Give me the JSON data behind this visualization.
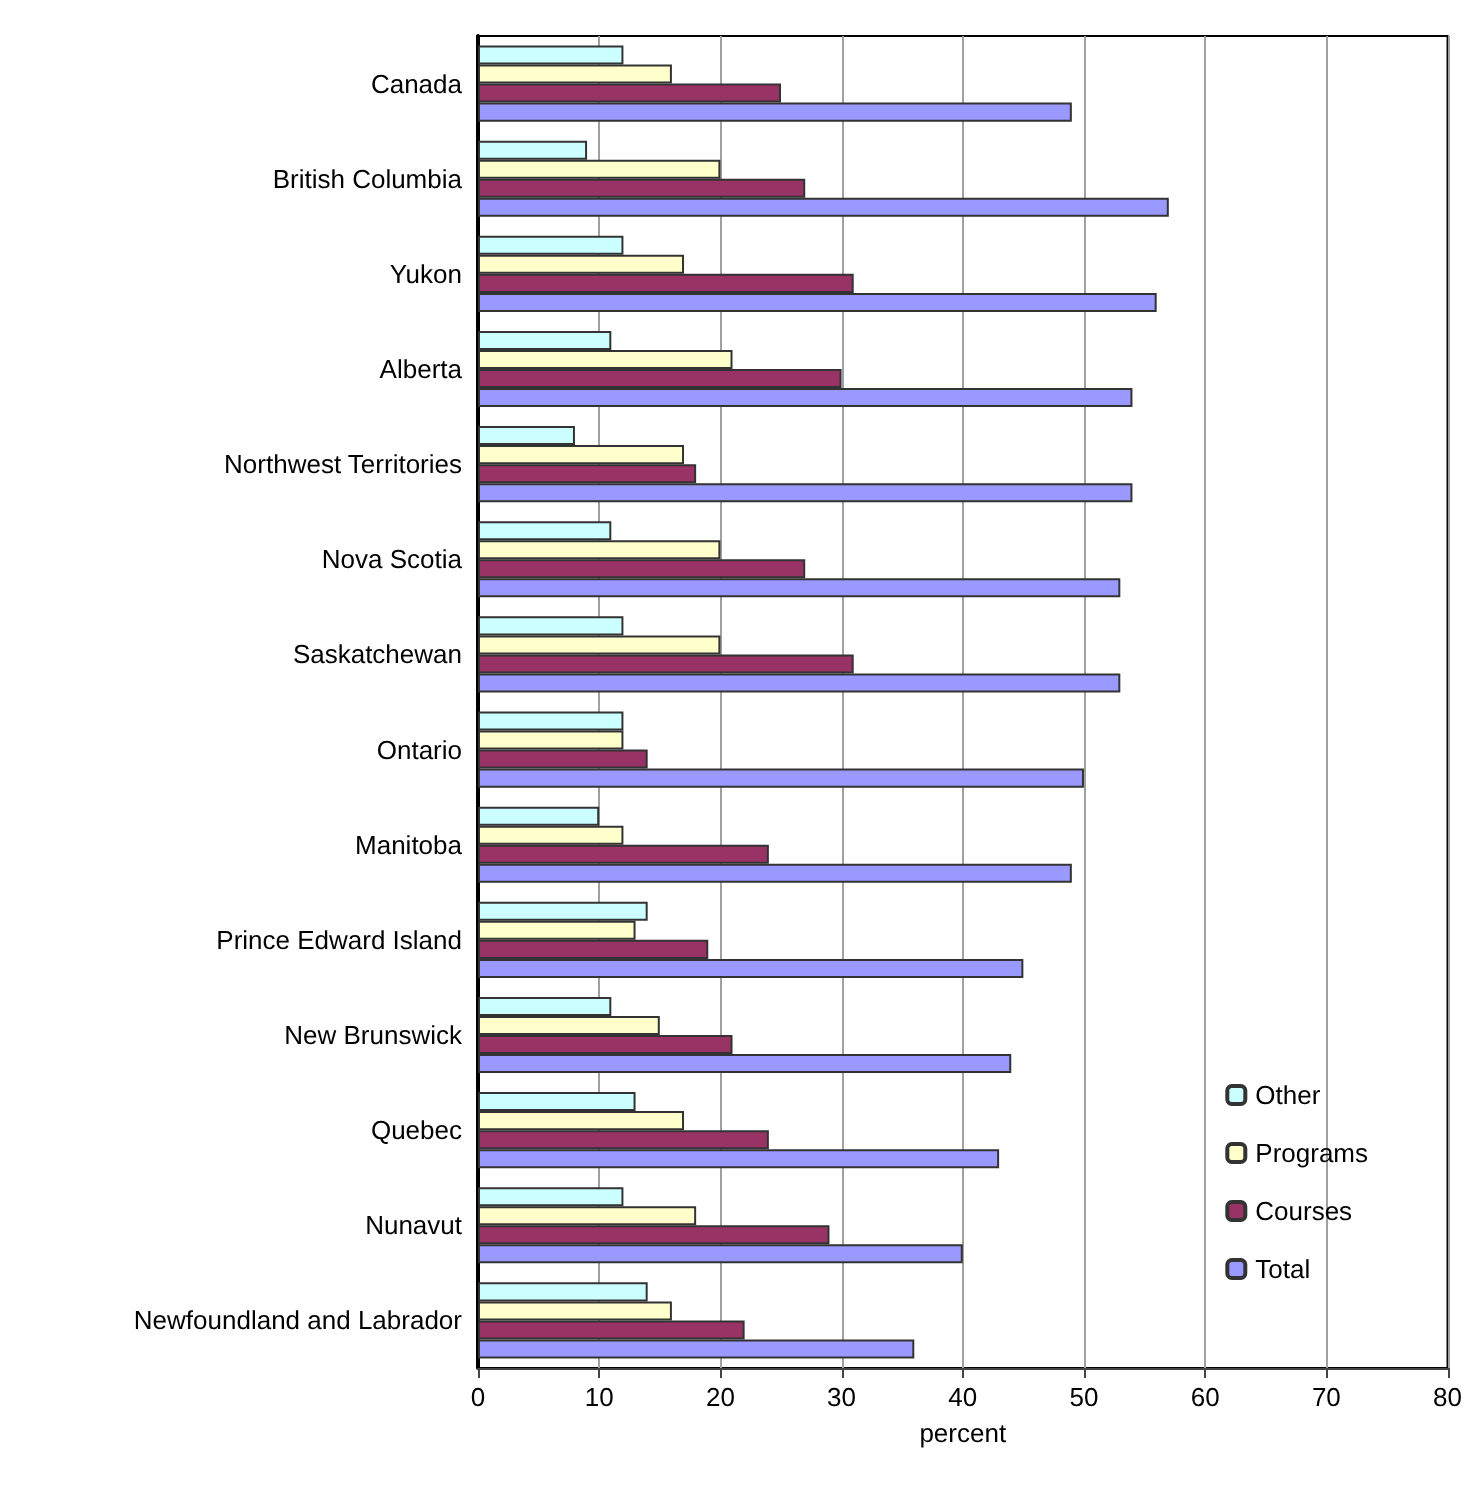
{
  "chart_data": {
    "type": "bar",
    "orientation": "horizontal",
    "xlabel": "percent",
    "categories": [
      "Canada",
      "British Columbia",
      "Yukon",
      "Alberta",
      "Northwest Territories",
      "Nova Scotia",
      "Saskatchewan",
      "Ontario",
      "Manitoba",
      "Prince Edward Island",
      "New Brunswick",
      "Quebec",
      "Nunavut",
      "Newfoundland and Labrador"
    ],
    "series": [
      {
        "name": "Other",
        "color": "#ccffff",
        "values": [
          12,
          9,
          12,
          11,
          8,
          11,
          12,
          12,
          10,
          14,
          11,
          13,
          12,
          14
        ]
      },
      {
        "name": "Programs",
        "color": "#ffffcc",
        "values": [
          16,
          20,
          17,
          21,
          17,
          20,
          20,
          12,
          12,
          13,
          15,
          17,
          18,
          16
        ]
      },
      {
        "name": "Courses",
        "color": "#993366",
        "values": [
          25,
          27,
          31,
          30,
          18,
          27,
          31,
          14,
          24,
          19,
          21,
          24,
          29,
          22
        ]
      },
      {
        "name": "Total",
        "color": "#9999ff",
        "values": [
          49,
          57,
          56,
          54,
          54,
          53,
          53,
          50,
          49,
          45,
          44,
          43,
          40,
          36
        ]
      }
    ],
    "xlim": [
      0,
      80
    ],
    "xticks": [
      0,
      10,
      20,
      30,
      40,
      50,
      60,
      70,
      80
    ],
    "grid": "x",
    "legend": "bottom right"
  }
}
